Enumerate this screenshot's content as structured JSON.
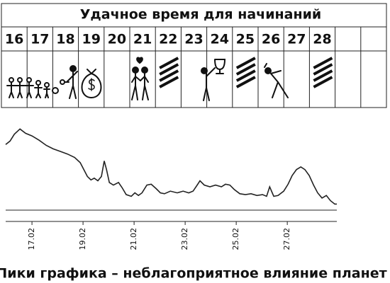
{
  "header": {
    "title": "Удачное время для начинаний",
    "days": [
      "16",
      "17",
      "18",
      "19",
      "20",
      "21",
      "22",
      "23",
      "24",
      "25",
      "26",
      "27",
      "28"
    ]
  },
  "chart_data": {
    "type": "line",
    "x": [
      15.97,
      16.14,
      16.31,
      16.53,
      16.75,
      17.0,
      17.28,
      17.56,
      17.83,
      18.11,
      18.39,
      18.67,
      18.89,
      19.03,
      19.17,
      19.31,
      19.44,
      19.58,
      19.72,
      19.83,
      19.92,
      20.03,
      20.19,
      20.39,
      20.53,
      20.69,
      20.89,
      21.03,
      21.17,
      21.31,
      21.5,
      21.67,
      21.86,
      22.03,
      22.19,
      22.42,
      22.69,
      22.92,
      23.14,
      23.31,
      23.47,
      23.58,
      23.75,
      23.97,
      24.19,
      24.42,
      24.58,
      24.75,
      24.92,
      25.14,
      25.36,
      25.58,
      25.81,
      26.03,
      26.19,
      26.31,
      26.47,
      26.64,
      26.86,
      27.03,
      27.19,
      27.36,
      27.53,
      27.69,
      27.86,
      28.03,
      28.19,
      28.36,
      28.53,
      28.69,
      28.86,
      28.94
    ],
    "series": [
      {
        "color": "#222222",
        "values": [
          76,
          80,
          88,
          94,
          89,
          86,
          81,
          75,
          71,
          68,
          65,
          61,
          55,
          47,
          39,
          35,
          37,
          34,
          39,
          57,
          47,
          32,
          29,
          32,
          26,
          18,
          16,
          20,
          17,
          20,
          29,
          30,
          25,
          20,
          19,
          22,
          20,
          22,
          20,
          22,
          29,
          34,
          29,
          27,
          29,
          27,
          30,
          29,
          24,
          19,
          18,
          19,
          17,
          18,
          16,
          27,
          16,
          17,
          22,
          30,
          40,
          47,
          50,
          47,
          40,
          29,
          20,
          14,
          17,
          11,
          7,
          7
        ]
      }
    ],
    "xlim": [
      15.97,
      28.94
    ],
    "ylim": [
      0,
      100
    ],
    "xticks": [
      {
        "value": 17,
        "label": "17.02"
      },
      {
        "value": 19,
        "label": "19.02"
      },
      {
        "value": 21,
        "label": "21.02"
      },
      {
        "value": 23,
        "label": "23.02"
      },
      {
        "value": 25,
        "label": "25.02"
      },
      {
        "value": 27,
        "label": "27.02"
      }
    ]
  },
  "caption": "Пики графика – неблагоприятное влияние планет"
}
